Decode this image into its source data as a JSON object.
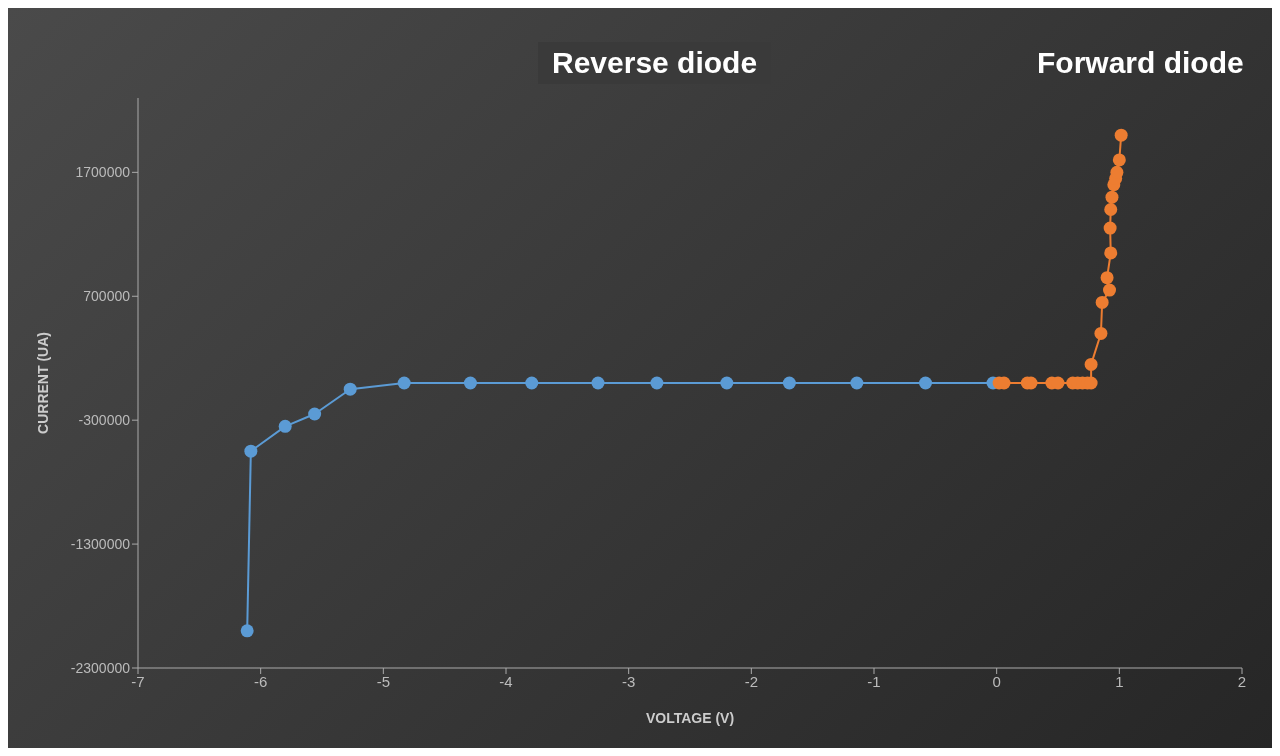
{
  "chart_data": {
    "type": "line",
    "xlabel": "VOLTAGE (V)",
    "ylabel": "CURRENT (UA)",
    "annotations": [
      "Reverse diode",
      "Forward diode"
    ],
    "xlim": [
      -7,
      2
    ],
    "xticks": [
      -7,
      -6,
      -5,
      -4,
      -3,
      -2,
      -1,
      0,
      1,
      2
    ],
    "ylim": [
      -2300000,
      2300000
    ],
    "yticks": [
      -2300000,
      -1300000,
      -300000,
      700000,
      1700000
    ],
    "grid": false,
    "legend": false,
    "marker": "circle",
    "line_style": "solid",
    "series": [
      {
        "color": "#5b9bd5",
        "x": [
          -6.11,
          -6.08,
          -5.8,
          -5.56,
          -5.27,
          -4.83,
          -4.29,
          -3.79,
          -3.25,
          -2.77,
          -2.2,
          -1.69,
          -1.14,
          -0.58,
          -0.03
        ],
        "values": [
          -2000000,
          -550000,
          -350000,
          -250000,
          -50000,
          0,
          0,
          0,
          0,
          0,
          0,
          0,
          0,
          0,
          0
        ]
      },
      {
        "color": "#ed7d31",
        "x": [
          0.02,
          0.06,
          0.25,
          0.28,
          0.45,
          0.5,
          0.62,
          0.66,
          0.7,
          0.74,
          0.77,
          0.77,
          0.85,
          0.86,
          0.92,
          0.9,
          0.93,
          0.925,
          0.93,
          0.94,
          0.955,
          0.97,
          0.98,
          1.0,
          1.015
        ],
        "values": [
          0,
          0,
          0,
          0,
          0,
          0,
          0,
          0,
          0,
          0,
          0,
          150000,
          400000,
          650000,
          750000,
          850000,
          1050000,
          1250000,
          1400000,
          1500000,
          1600000,
          1650000,
          1700000,
          1800000,
          2000000
        ]
      }
    ]
  }
}
